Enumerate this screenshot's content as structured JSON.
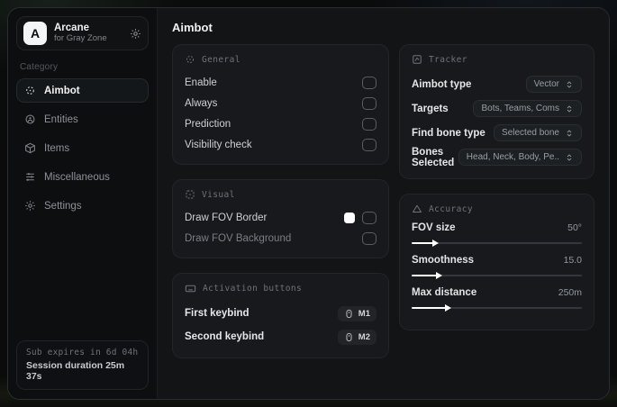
{
  "sidebar": {
    "app": {
      "logo_letter": "A",
      "name": "Arcane",
      "subtitle": "for Gray Zone"
    },
    "category_label": "Category",
    "items": [
      {
        "label": "Aimbot",
        "icon": "crosshair-icon",
        "active": true
      },
      {
        "label": "Entities",
        "icon": "entities-icon",
        "active": false
      },
      {
        "label": "Items",
        "icon": "package-icon",
        "active": false
      },
      {
        "label": "Miscellaneous",
        "icon": "sliders-icon",
        "active": false
      },
      {
        "label": "Settings",
        "icon": "gear-icon",
        "active": false
      }
    ],
    "footer": {
      "sub_expires": "Sub expires in 6d 04h",
      "session_duration": "Session duration 25m 37s"
    }
  },
  "main": {
    "title": "Aimbot",
    "sections": {
      "general": {
        "title": "General",
        "rows": [
          {
            "label": "Enable",
            "checked": false
          },
          {
            "label": "Always",
            "checked": false
          },
          {
            "label": "Prediction",
            "checked": false
          },
          {
            "label": "Visibility check",
            "checked": false
          }
        ]
      },
      "visual": {
        "title": "Visual",
        "rows": [
          {
            "label": "Draw FOV Border",
            "swatch_color": "#ffffff",
            "checked": false
          },
          {
            "label": "Draw FOV Background",
            "checked": false
          }
        ]
      },
      "activation": {
        "title": "Activation buttons",
        "rows": [
          {
            "label": "First keybind",
            "bind": "M1"
          },
          {
            "label": "Second keybind",
            "bind": "M2"
          }
        ]
      },
      "tracker": {
        "title": "Tracker",
        "rows": [
          {
            "label": "Aimbot type",
            "value": "Vector"
          },
          {
            "label": "Targets",
            "value": "Bots, Teams, Coms"
          },
          {
            "label": "Find bone type",
            "value": "Selected bone"
          },
          {
            "label": "Bones Selected",
            "value": "Head, Neck, Body, Pe.."
          }
        ]
      },
      "accuracy": {
        "title": "Accuracy",
        "sliders": [
          {
            "label": "FOV size",
            "value": "50°",
            "percent": 15
          },
          {
            "label": "Smoothness",
            "value": "15.0",
            "percent": 17
          },
          {
            "label": "Max distance",
            "value": "250m",
            "percent": 22
          }
        ]
      }
    }
  },
  "colors": {
    "accent": "#ffffff",
    "card_bg": "#17191c",
    "window_bg": "#0e1013"
  }
}
